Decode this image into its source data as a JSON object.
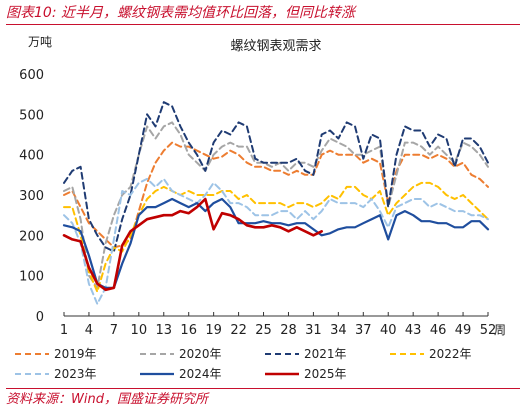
{
  "figure": {
    "title": "图表10:  近半月，螺纹钢表需均值环比回落，但同比转涨",
    "source": "资料来源：Wind，国盛证券研究所"
  },
  "chart_data": {
    "type": "line",
    "title": "螺纹钢表观需求",
    "ylabel": "万吨",
    "xlabel": "周",
    "ylim": [
      0,
      600
    ],
    "yticks": [
      0,
      100,
      200,
      300,
      400,
      500,
      600
    ],
    "xlim": [
      1,
      52
    ],
    "xticks": [
      1,
      4,
      7,
      10,
      13,
      16,
      19,
      22,
      25,
      28,
      31,
      34,
      37,
      40,
      43,
      46,
      49,
      52
    ],
    "grid": false,
    "legend_position": "bottom",
    "series": [
      {
        "name": "2019年",
        "color": "#ed7d31",
        "dash": "6,4",
        "width": 2,
        "x": [
          1,
          2,
          3,
          4,
          5,
          6,
          7,
          8,
          9,
          10,
          11,
          12,
          13,
          14,
          15,
          16,
          17,
          18,
          19,
          20,
          21,
          22,
          23,
          24,
          25,
          26,
          27,
          28,
          29,
          30,
          31,
          32,
          33,
          34,
          35,
          36,
          37,
          38,
          39,
          40,
          41,
          42,
          43,
          44,
          45,
          46,
          47,
          48,
          49,
          50,
          51,
          52
        ],
        "values": [
          300,
          310,
          270,
          230,
          210,
          190,
          170,
          175,
          190,
          260,
          330,
          380,
          410,
          430,
          420,
          420,
          410,
          400,
          390,
          395,
          410,
          400,
          380,
          370,
          370,
          360,
          360,
          350,
          360,
          350,
          350,
          400,
          410,
          400,
          400,
          400,
          380,
          390,
          380,
          280,
          360,
          400,
          400,
          400,
          390,
          400,
          390,
          370,
          380,
          350,
          340,
          320
        ]
      },
      {
        "name": "2020年",
        "color": "#a6a6a6",
        "dash": "6,4",
        "width": 2,
        "x": [
          1,
          2,
          3,
          4,
          5,
          6,
          7,
          8,
          9,
          10,
          11,
          12,
          13,
          14,
          15,
          16,
          17,
          18,
          19,
          20,
          21,
          22,
          23,
          24,
          25,
          26,
          27,
          28,
          29,
          30,
          31,
          32,
          33,
          34,
          35,
          36,
          37,
          38,
          39,
          40,
          41,
          42,
          43,
          44,
          45,
          46,
          47,
          48,
          49,
          50,
          51,
          52
        ],
        "values": [
          310,
          320,
          240,
          100,
          70,
          180,
          250,
          300,
          320,
          400,
          470,
          440,
          470,
          480,
          450,
          400,
          380,
          360,
          400,
          420,
          430,
          420,
          420,
          380,
          380,
          370,
          380,
          360,
          380,
          380,
          370,
          410,
          440,
          430,
          420,
          400,
          400,
          410,
          420,
          270,
          350,
          430,
          430,
          420,
          400,
          420,
          400,
          380,
          430,
          420,
          400,
          370
        ]
      },
      {
        "name": "2021年",
        "color": "#1f3b73",
        "dash": "6,4",
        "width": 2,
        "x": [
          1,
          2,
          3,
          4,
          5,
          6,
          7,
          8,
          9,
          10,
          11,
          12,
          13,
          14,
          15,
          16,
          17,
          18,
          19,
          20,
          21,
          22,
          23,
          24,
          25,
          26,
          27,
          28,
          29,
          30,
          31,
          32,
          33,
          34,
          35,
          36,
          37,
          38,
          39,
          40,
          41,
          42,
          43,
          44,
          45,
          46,
          47,
          48,
          49,
          50,
          51,
          52
        ],
        "values": [
          330,
          360,
          370,
          240,
          200,
          170,
          160,
          240,
          300,
          400,
          500,
          470,
          530,
          520,
          470,
          430,
          400,
          360,
          430,
          460,
          450,
          480,
          470,
          390,
          380,
          380,
          380,
          380,
          390,
          360,
          350,
          450,
          460,
          440,
          480,
          470,
          390,
          450,
          440,
          270,
          400,
          470,
          460,
          460,
          420,
          450,
          440,
          370,
          440,
          440,
          420,
          380
        ]
      },
      {
        "name": "2022年",
        "color": "#ffc000",
        "dash": "6,4",
        "width": 2,
        "x": [
          1,
          2,
          3,
          4,
          5,
          6,
          7,
          8,
          9,
          10,
          11,
          12,
          13,
          14,
          15,
          16,
          17,
          18,
          19,
          20,
          21,
          22,
          23,
          24,
          25,
          26,
          27,
          28,
          29,
          30,
          31,
          32,
          33,
          34,
          35,
          36,
          37,
          38,
          39,
          40,
          41,
          42,
          43,
          44,
          45,
          46,
          47,
          48,
          49,
          50,
          51,
          52
        ],
        "values": [
          270,
          270,
          200,
          110,
          60,
          130,
          170,
          160,
          200,
          250,
          290,
          310,
          320,
          310,
          300,
          310,
          300,
          300,
          300,
          310,
          310,
          290,
          300,
          280,
          280,
          280,
          280,
          270,
          280,
          280,
          270,
          280,
          300,
          290,
          320,
          320,
          300,
          290,
          310,
          250,
          280,
          300,
          320,
          330,
          330,
          320,
          300,
          290,
          300,
          280,
          260,
          240
        ]
      },
      {
        "name": "2023年",
        "color": "#9dc3e6",
        "dash": "6,4",
        "width": 2,
        "x": [
          1,
          2,
          3,
          4,
          5,
          6,
          7,
          8,
          9,
          10,
          11,
          12,
          13,
          14,
          15,
          16,
          17,
          18,
          19,
          20,
          21,
          22,
          23,
          24,
          25,
          26,
          27,
          28,
          29,
          30,
          31,
          32,
          33,
          34,
          35,
          36,
          37,
          38,
          39,
          40,
          41,
          42,
          43,
          44,
          45,
          46,
          47,
          48,
          49,
          50,
          51,
          52
        ],
        "values": [
          250,
          230,
          180,
          80,
          30,
          70,
          190,
          310,
          300,
          330,
          340,
          320,
          340,
          310,
          300,
          290,
          280,
          300,
          330,
          310,
          280,
          280,
          270,
          250,
          250,
          250,
          260,
          260,
          240,
          260,
          240,
          260,
          290,
          280,
          280,
          280,
          270,
          290,
          260,
          220,
          270,
          280,
          290,
          290,
          270,
          280,
          270,
          260,
          260,
          250,
          250,
          240
        ]
      },
      {
        "name": "2024年",
        "color": "#1f4e9e",
        "dash": "",
        "width": 2.2,
        "x": [
          1,
          2,
          3,
          4,
          5,
          6,
          7,
          8,
          9,
          10,
          11,
          12,
          13,
          14,
          15,
          16,
          17,
          18,
          19,
          20,
          21,
          22,
          23,
          24,
          25,
          26,
          27,
          28,
          29,
          30,
          31,
          32,
          33,
          34,
          35,
          36,
          37,
          38,
          39,
          40,
          41,
          42,
          43,
          44,
          45,
          46,
          47,
          48,
          49,
          50,
          51,
          52
        ],
        "values": [
          225,
          220,
          210,
          150,
          80,
          70,
          70,
          130,
          180,
          250,
          270,
          270,
          280,
          290,
          280,
          270,
          280,
          260,
          280,
          290,
          270,
          230,
          230,
          230,
          235,
          230,
          230,
          225,
          230,
          230,
          215,
          200,
          205,
          215,
          220,
          220,
          230,
          240,
          250,
          190,
          250,
          260,
          250,
          235,
          235,
          230,
          230,
          220,
          220,
          235,
          235,
          215
        ]
      },
      {
        "name": "2025年",
        "color": "#c00000",
        "dash": "",
        "width": 2.6,
        "x": [
          1,
          2,
          3,
          4,
          5,
          6,
          7,
          8,
          9,
          10,
          11,
          12,
          13,
          14,
          15,
          16,
          17,
          18,
          19,
          20,
          21,
          22,
          23,
          24,
          25,
          26,
          27,
          28,
          29,
          30,
          31,
          32
        ],
        "values": [
          200,
          190,
          185,
          120,
          80,
          65,
          70,
          175,
          210,
          225,
          240,
          245,
          250,
          250,
          260,
          255,
          270,
          290,
          215,
          255,
          250,
          240,
          225,
          220,
          220,
          225,
          220,
          210,
          220,
          210,
          200,
          210
        ]
      }
    ]
  }
}
